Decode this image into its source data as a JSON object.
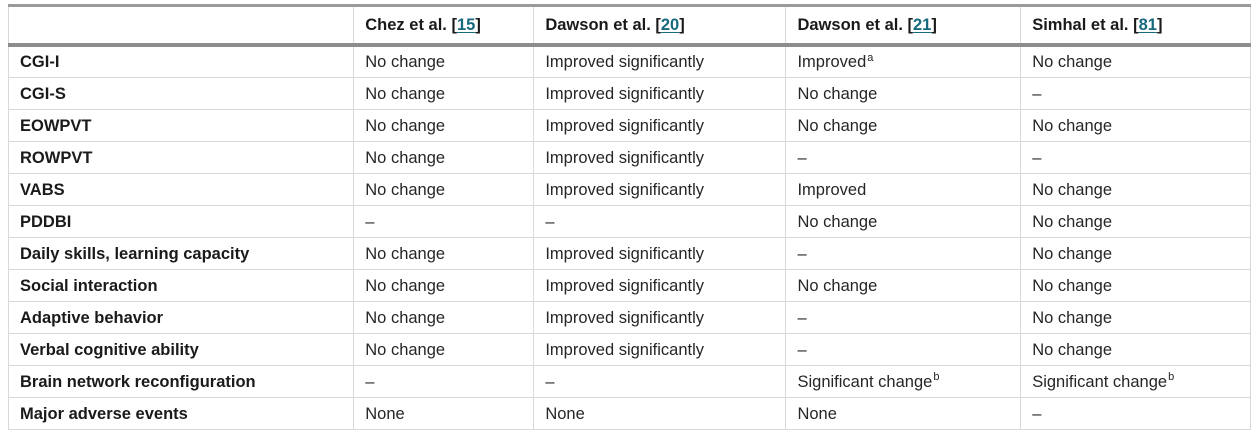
{
  "table": {
    "corner": "",
    "columns": [
      {
        "name": "Chez et al. ",
        "ref": "15"
      },
      {
        "name": "Dawson et al. ",
        "ref": "20"
      },
      {
        "name": "Dawson et al. ",
        "ref": "21"
      },
      {
        "name": "Simhal et al. ",
        "ref": "81"
      }
    ],
    "rows": [
      {
        "label": "CGI-I",
        "cells": [
          {
            "text": "No change"
          },
          {
            "text": "Improved significantly"
          },
          {
            "text": "Improved",
            "sup": "a"
          },
          {
            "text": "No change"
          }
        ]
      },
      {
        "label": "CGI-S",
        "cells": [
          {
            "text": "No change"
          },
          {
            "text": "Improved significantly"
          },
          {
            "text": "No change"
          },
          {
            "text": "–"
          }
        ]
      },
      {
        "label": "EOWPVT",
        "cells": [
          {
            "text": "No change"
          },
          {
            "text": "Improved significantly"
          },
          {
            "text": "No change"
          },
          {
            "text": "No change"
          }
        ]
      },
      {
        "label": "ROWPVT",
        "cells": [
          {
            "text": "No change"
          },
          {
            "text": "Improved significantly"
          },
          {
            "text": "–"
          },
          {
            "text": "–"
          }
        ]
      },
      {
        "label": "VABS",
        "cells": [
          {
            "text": "No change"
          },
          {
            "text": "Improved significantly"
          },
          {
            "text": "Improved"
          },
          {
            "text": "No change"
          }
        ]
      },
      {
        "label": "PDDBI",
        "cells": [
          {
            "text": "–"
          },
          {
            "text": "–"
          },
          {
            "text": "No change"
          },
          {
            "text": "No change"
          }
        ]
      },
      {
        "label": "Daily skills, learning capacity",
        "cells": [
          {
            "text": "No change"
          },
          {
            "text": "Improved significantly"
          },
          {
            "text": "–"
          },
          {
            "text": "No change"
          }
        ]
      },
      {
        "label": "Social interaction",
        "cells": [
          {
            "text": "No change"
          },
          {
            "text": "Improved significantly"
          },
          {
            "text": "No change"
          },
          {
            "text": "No change"
          }
        ]
      },
      {
        "label": "Adaptive behavior",
        "cells": [
          {
            "text": "No change"
          },
          {
            "text": "Improved significantly"
          },
          {
            "text": "–"
          },
          {
            "text": "No change"
          }
        ]
      },
      {
        "label": "Verbal cognitive ability",
        "cells": [
          {
            "text": "No change"
          },
          {
            "text": "Improved significantly"
          },
          {
            "text": "–"
          },
          {
            "text": "No change"
          }
        ]
      },
      {
        "label": "Brain network reconfiguration",
        "cells": [
          {
            "text": "–"
          },
          {
            "text": "–"
          },
          {
            "text": "Significant change",
            "sup": "b"
          },
          {
            "text": "Significant change",
            "sup": "b"
          }
        ]
      },
      {
        "label": "Major adverse events",
        "cells": [
          {
            "text": "None"
          },
          {
            "text": "None"
          },
          {
            "text": "None"
          },
          {
            "text": "–"
          }
        ]
      }
    ]
  },
  "colors": {
    "citation_link": "#16697e",
    "top_rule": "#9b9b9b",
    "header_rule": "#8d8d8d",
    "grid_line": "#d8d8d8",
    "text": "#1a1a1a"
  }
}
